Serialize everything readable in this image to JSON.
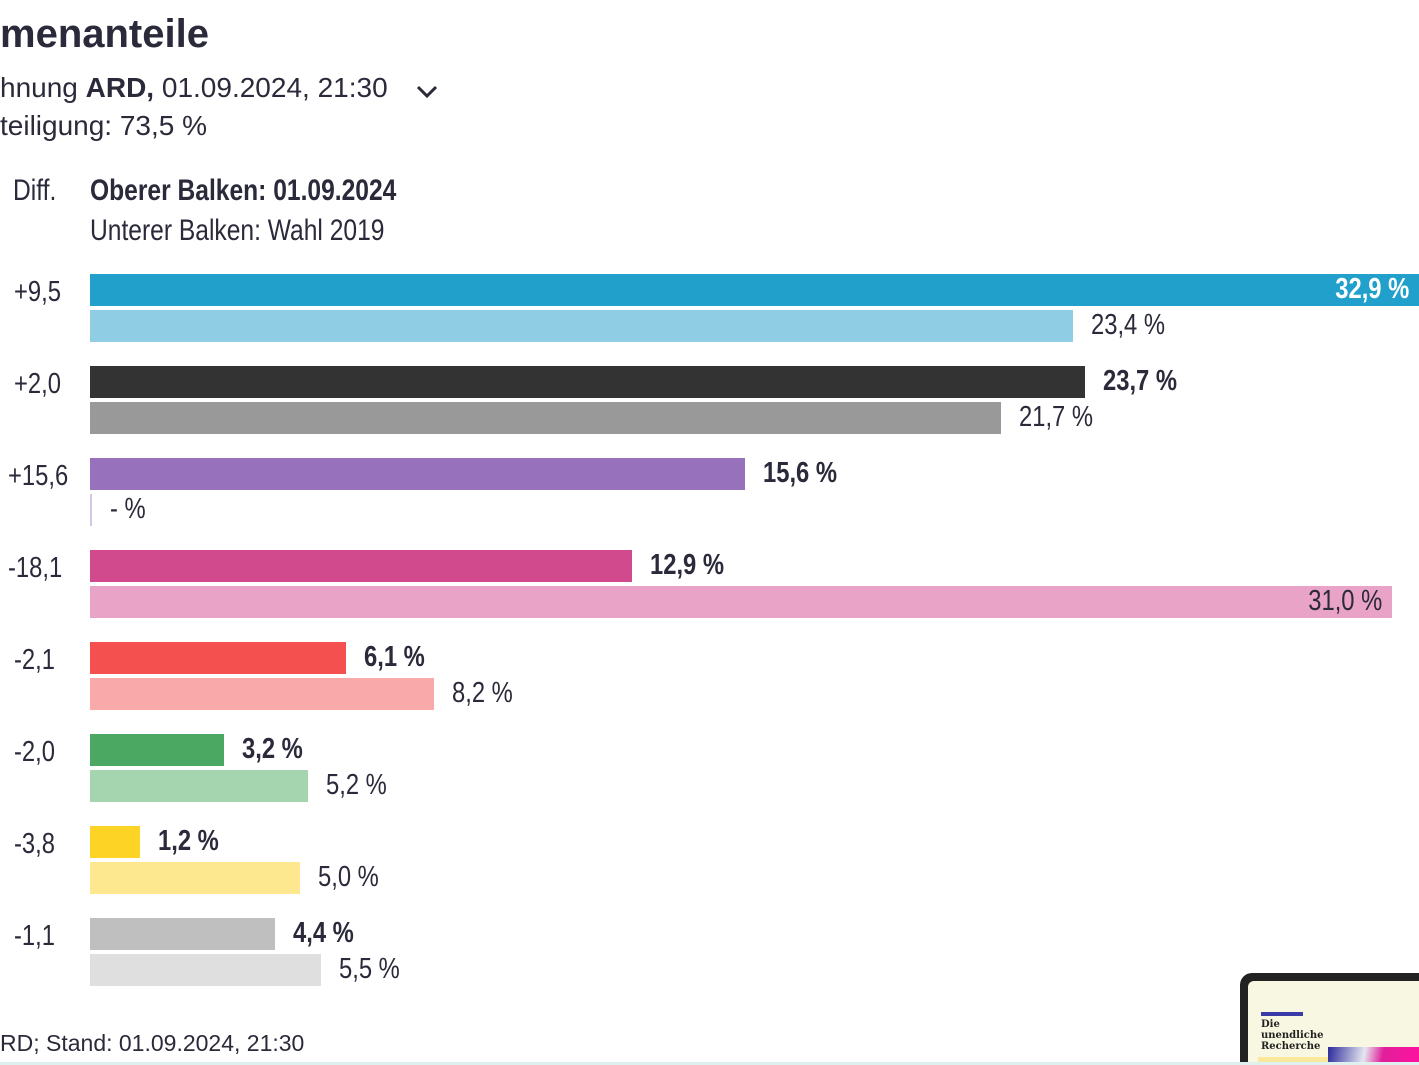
{
  "header": {
    "title": "menanteile",
    "subtitle_prefix": "hnung ",
    "subtitle_bold": "ARD,",
    "subtitle_rest": " 01.09.2024, 21:30",
    "turnout": "teiligung: 73,5 %",
    "dropdown_icon": "chevron-down-icon"
  },
  "chart_data": {
    "type": "bar",
    "orientation": "horizontal",
    "diff_header": "Diff.",
    "legend": [
      "Oberer Balken: 01.09.2024",
      "Unterer Balken: Wahl 2019"
    ],
    "series": [
      {
        "name": "Oberer Balken: 01.09.2024",
        "values": [
          32.9,
          23.7,
          15.6,
          12.9,
          6.1,
          3.2,
          1.2,
          4.4
        ]
      },
      {
        "name": "Unterer Balken: Wahl 2019",
        "values": [
          23.4,
          21.7,
          null,
          31.0,
          8.2,
          5.2,
          5.0,
          5.5
        ]
      }
    ],
    "labels_current": [
      "32,9 %",
      "23,7 %",
      "15,6 %",
      "12,9 %",
      "6,1 %",
      "3,2 %",
      "1,2 %",
      "4,4 %"
    ],
    "labels_previous": [
      "23,4 %",
      "21,7 %",
      "- %",
      "31,0 %",
      "8,2 %",
      "5,2 %",
      "5,0 %",
      "5,5 %"
    ],
    "diffs": [
      "+9,5",
      "+2,0",
      "+15,6",
      "-18,1",
      "-2,1",
      "-2,0",
      "-3,8",
      "-1,1"
    ],
    "colors_current": [
      "#21a0cb",
      "#333333",
      "#9871bd",
      "#d14a8d",
      "#f45050",
      "#4aa863",
      "#fdd425",
      "#bfbfbf"
    ],
    "colors_previous": [
      "#8ecde3",
      "#999999",
      "#d5c6e8",
      "#e9a3c7",
      "#f9a9a9",
      "#a5d5ae",
      "#fee88f",
      "#dfdfdf"
    ]
  },
  "footer": {
    "source": "RD; Stand: 01.09.2024, 21:30"
  },
  "ad": {
    "headline": "Die unendliche Recherche"
  }
}
